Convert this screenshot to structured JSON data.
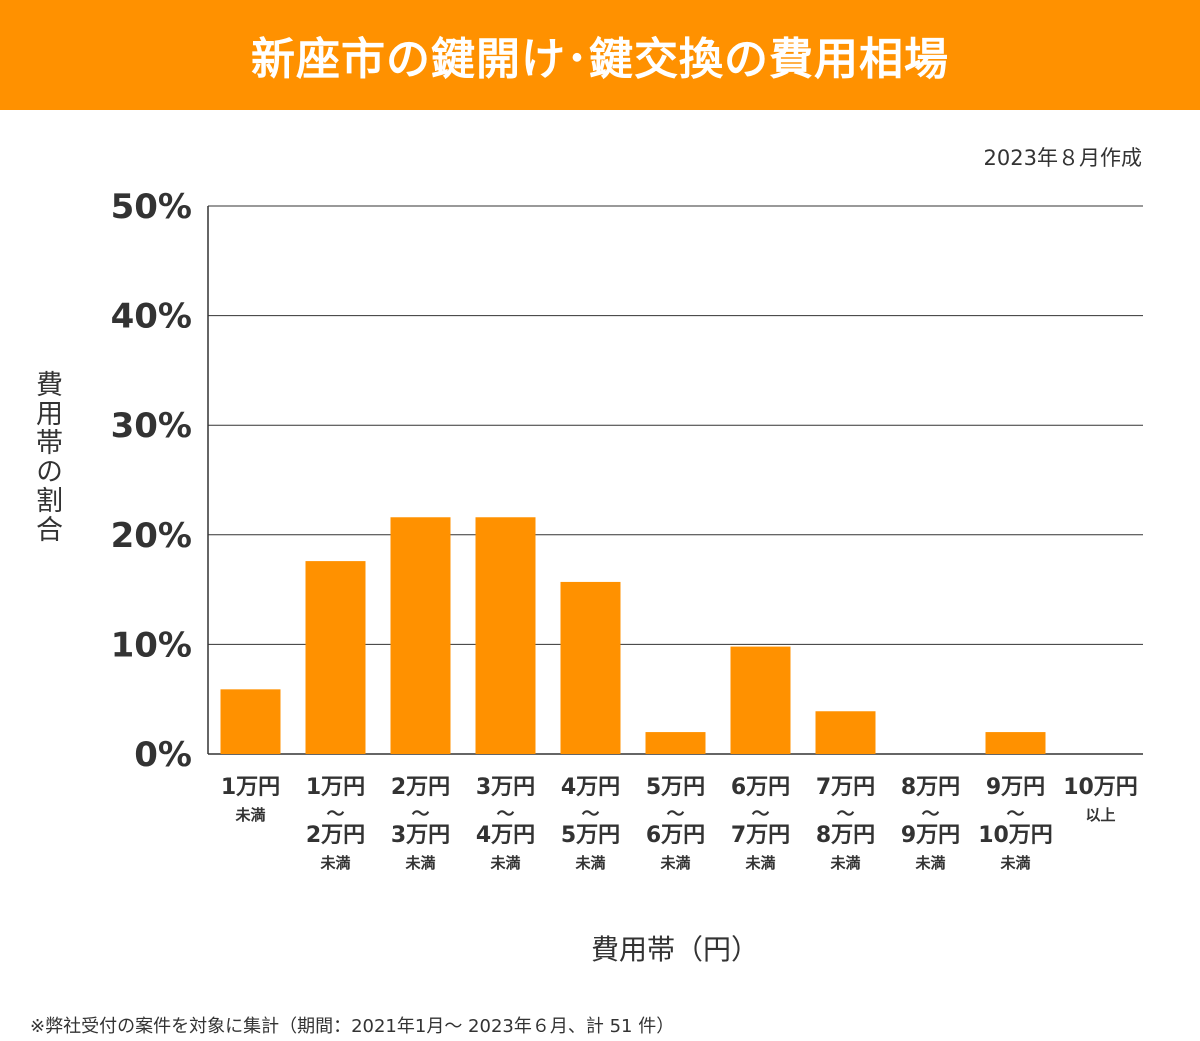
{
  "title": "新座市の鍵開け･鍵交換の費用相場",
  "date_note": "2023年８月作成",
  "footnote": "※弊社受付の案件を対象に集計（期間：2021年1月～ 2023年６月、計 51 件）",
  "colors": {
    "accent": "#ff9100",
    "text": "#333333",
    "grid": "#333333"
  },
  "chart_data": {
    "type": "bar",
    "title": "新座市の鍵開け･鍵交換の費用相場",
    "xlabel": "費用帯（円）",
    "ylabel": "費用帯の割合",
    "ylim": [
      0,
      50
    ],
    "yticks": [
      "0%",
      "10%",
      "20%",
      "30%",
      "40%",
      "50%"
    ],
    "grid": true,
    "categories": [
      [
        "1万円",
        "未満"
      ],
      [
        "1万円",
        "～",
        "2万円",
        "未満"
      ],
      [
        "2万円",
        "～",
        "3万円",
        "未満"
      ],
      [
        "3万円",
        "～",
        "4万円",
        "未満"
      ],
      [
        "4万円",
        "～",
        "5万円",
        "未満"
      ],
      [
        "5万円",
        "～",
        "6万円",
        "未満"
      ],
      [
        "6万円",
        "～",
        "7万円",
        "未満"
      ],
      [
        "7万円",
        "～",
        "8万円",
        "未満"
      ],
      [
        "8万円",
        "～",
        "9万円",
        "未満"
      ],
      [
        "9万円",
        "～",
        "10万円",
        "未満"
      ],
      [
        "10万円",
        "以上"
      ]
    ],
    "values": [
      5.9,
      17.6,
      21.6,
      21.6,
      15.7,
      2.0,
      9.8,
      3.9,
      0,
      2.0,
      0
    ]
  }
}
